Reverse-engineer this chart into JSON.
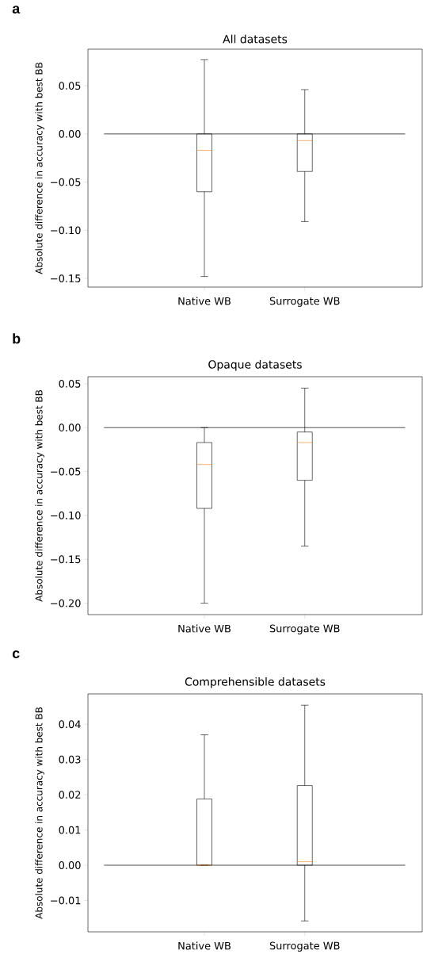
{
  "chart_data": [
    {
      "type": "box",
      "title": "All datasets",
      "ylabel": "Absolute difference in accuracy with best BB",
      "annotations": [
        "a"
      ],
      "categories": [
        "Native WB",
        "Surrogate WB"
      ],
      "color": "#000000",
      "boxes": [
        {
          "low": -0.148,
          "q1": -0.06,
          "median": -0.017,
          "q3": 0.0,
          "high": 0.077
        },
        {
          "low": -0.091,
          "q1": -0.039,
          "median": -0.007,
          "q3": 0.0,
          "high": 0.046
        }
      ],
      "ylim": [
        -0.159,
        0.088
      ],
      "yticks": [
        {
          "value": -0.15,
          "label": "−0.15"
        },
        {
          "value": -0.1,
          "label": "−0.10"
        },
        {
          "value": -0.05,
          "label": "−0.05"
        },
        {
          "value": 0,
          "label": "0.00"
        },
        {
          "value": 0.05,
          "label": "0.05"
        }
      ],
      "ref_lines": [
        {
          "axis": "y",
          "value": 0,
          "color": "#000000"
        }
      ]
    },
    {
      "type": "box",
      "title": "Opaque datasets",
      "ylabel": "Absolute difference in accuracy with best BB",
      "annotations": [
        "b"
      ],
      "categories": [
        "Native WB",
        "Surrogate WB"
      ],
      "color": "#000000",
      "boxes": [
        {
          "low": -0.2,
          "q1": -0.092,
          "median": -0.042,
          "q3": -0.017,
          "high": 0.0
        },
        {
          "low": -0.135,
          "q1": -0.06,
          "median": -0.017,
          "q3": -0.005,
          "high": 0.045
        }
      ],
      "ylim": [
        -0.213,
        0.058
      ],
      "yticks": [
        {
          "value": -0.2,
          "label": "−0.20"
        },
        {
          "value": -0.15,
          "label": "−0.15"
        },
        {
          "value": -0.1,
          "label": "−0.10"
        },
        {
          "value": -0.05,
          "label": "−0.05"
        },
        {
          "value": 0,
          "label": "0.00"
        },
        {
          "value": 0.05,
          "label": "0.05"
        }
      ],
      "ref_lines": [
        {
          "axis": "y",
          "value": 0,
          "color": "#000000"
        }
      ]
    },
    {
      "type": "box",
      "title": "Comprehensible datasets",
      "ylabel": "Absolute difference in accuracy with best BB",
      "annotations": [
        "c"
      ],
      "categories": [
        "Native WB",
        "Surrogate WB"
      ],
      "color": "#000000",
      "boxes": [
        {
          "low": 0.0,
          "q1": 0.0,
          "median": 0.0,
          "q3": 0.0188,
          "high": 0.037
        },
        {
          "low": -0.0158,
          "q1": 0.0,
          "median": 0.001,
          "q3": 0.0226,
          "high": 0.0454
        }
      ],
      "ylim": [
        -0.0189,
        0.0486
      ],
      "yticks": [
        {
          "value": -0.01,
          "label": "−0.01"
        },
        {
          "value": 0,
          "label": "0.00"
        },
        {
          "value": 0.01,
          "label": "0.01"
        },
        {
          "value": 0.02,
          "label": "0.02"
        },
        {
          "value": 0.03,
          "label": "0.03"
        },
        {
          "value": 0.04,
          "label": "0.04"
        }
      ],
      "ref_lines": [
        {
          "axis": "y",
          "value": 0,
          "color": "#000000"
        }
      ]
    }
  ]
}
